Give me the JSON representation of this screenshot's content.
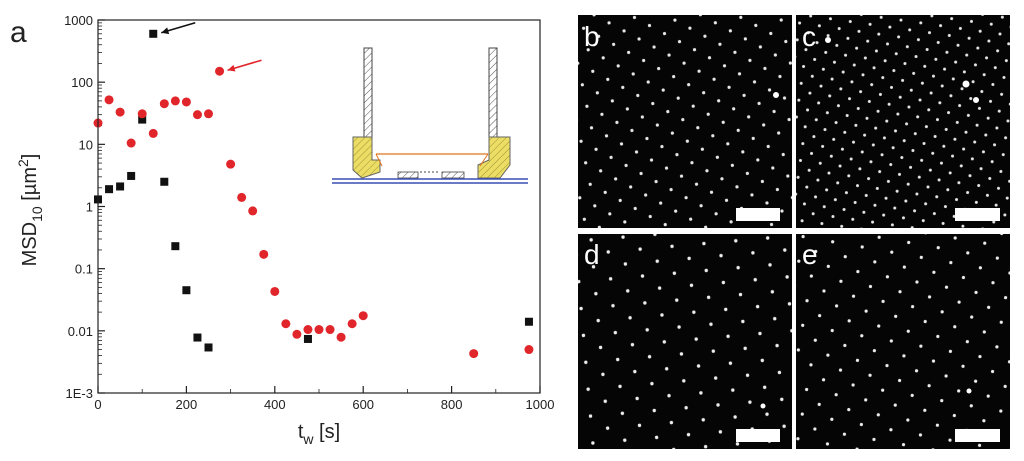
{
  "figure": {
    "panel_a_label": "a",
    "micrograph_labels": [
      "b",
      "c",
      "d",
      "e"
    ]
  },
  "colors": {
    "black_series": "#111111",
    "red_series": "#e0262b",
    "axis": "#222222",
    "inset_yellow": "#ecde64",
    "inset_orange": "#e2731f",
    "inset_blue": "#3a4eb4",
    "scale_bar": "#ffffff"
  },
  "chart_data": {
    "type": "scatter",
    "xlabel": "t",
    "xlabel_sub": "w",
    "xlabel_unit": " [s]",
    "ylabel": "MSD",
    "ylabel_sub": "10",
    "ylabel_unit": " [µm",
    "ylabel_sup": "2",
    "ylabel_close": "]",
    "xlim": [
      0,
      1000
    ],
    "ylim": [
      0.001,
      1000
    ],
    "yscale": "log",
    "xticks": [
      0,
      200,
      400,
      600,
      800,
      1000
    ],
    "xtick_labels": [
      "0",
      "200",
      "400",
      "600",
      "800",
      "1000"
    ],
    "yticks": [
      0.001,
      0.01,
      0.1,
      1,
      10,
      100,
      1000
    ],
    "ytick_labels": [
      "1E-3",
      "0.01",
      "0.1",
      "1",
      "10",
      "100",
      "1000"
    ],
    "grid": false,
    "series": [
      {
        "marker": "square",
        "color": "#111111",
        "x": [
          0,
          25,
          50,
          75,
          100,
          125,
          150,
          175,
          200,
          225,
          250,
          475,
          975
        ],
        "y": [
          1.3,
          1.9,
          2.1,
          3.1,
          25,
          600,
          2.5,
          0.23,
          0.045,
          0.0078,
          0.0054,
          0.0074,
          0.014
        ]
      },
      {
        "marker": "circle",
        "color": "#e0262b",
        "x": [
          0,
          25,
          50,
          75,
          100,
          125,
          150,
          175,
          200,
          225,
          250,
          275,
          300,
          325,
          350,
          375,
          400,
          425,
          450,
          475,
          500,
          525,
          550,
          575,
          600,
          850,
          975
        ],
        "y": [
          22,
          52,
          33,
          10.5,
          31,
          15,
          45,
          50,
          48,
          30,
          31,
          150,
          4.8,
          1.4,
          0.85,
          0.17,
          0.043,
          0.013,
          0.0088,
          0.0105,
          0.0105,
          0.0105,
          0.0079,
          0.013,
          0.0175,
          0.0043,
          0.005
        ]
      }
    ],
    "annotations": [
      {
        "type": "arrow",
        "target_x": 125,
        "target_y": 600,
        "color": "#111111"
      },
      {
        "type": "arrow",
        "target_x": 275,
        "target_y": 150,
        "color": "#e0262b"
      }
    ]
  }
}
